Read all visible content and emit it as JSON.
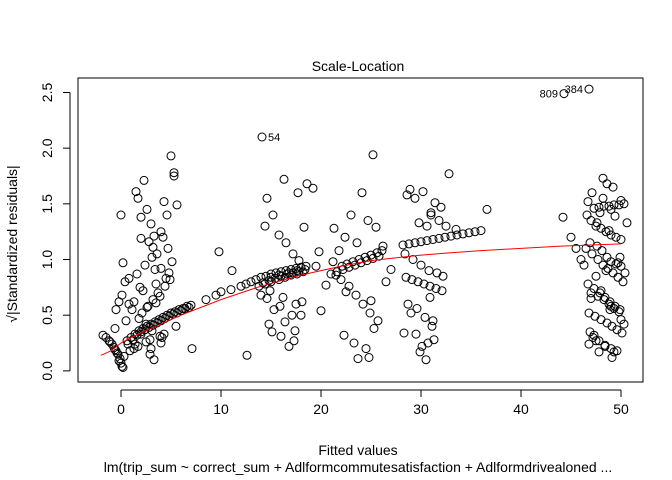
{
  "chart_data": {
    "type": "scatter",
    "title": "Scale-Location",
    "xlabel": "Fitted values",
    "ylabel": "√|Standardized residuals|",
    "subtitle": "lm(trip_sum ~ correct_sum + Adlformcommutesatisfaction + Adlformdrivealoned ...",
    "xlim": [
      -4.3,
      52.2
    ],
    "ylim": [
      -0.1,
      2.63
    ],
    "x_ticks": [
      0,
      10,
      20,
      30,
      40,
      50
    ],
    "y_ticks": [
      0.0,
      0.5,
      1.0,
      1.5,
      2.0,
      2.5
    ],
    "grid": false,
    "legend": "none",
    "point_style": "open-circle",
    "point_color": "#000000",
    "smoother_color": "#ff0000",
    "smoother": {
      "x": [
        -2.0,
        -1.0,
        0.0,
        1.0,
        2.0,
        3.0,
        4.0,
        6.0,
        8.0,
        10.0,
        12.0,
        14.0,
        16.0,
        18.0,
        20.0,
        22.0,
        25.0,
        28.0,
        30.0,
        33.0,
        36.0,
        40.0,
        44.0,
        47.0,
        50.0
      ],
      "y": [
        0.14,
        0.18,
        0.25,
        0.3,
        0.34,
        0.38,
        0.42,
        0.5,
        0.57,
        0.64,
        0.7,
        0.76,
        0.81,
        0.86,
        0.9,
        0.94,
        0.99,
        1.02,
        1.04,
        1.06,
        1.08,
        1.1,
        1.12,
        1.13,
        1.14
      ]
    },
    "labeled_points": [
      {
        "label": "384",
        "x": 46.8,
        "y": 2.53
      },
      {
        "label": "809",
        "x": 44.3,
        "y": 2.49
      },
      {
        "label": "54",
        "x": 14.1,
        "y": 2.1
      }
    ],
    "points": {
      "x": [
        -1.8,
        -1.5,
        -1.2,
        -0.9,
        -0.7,
        -0.5,
        -0.3,
        -0.1,
        0.0,
        0.1,
        0.2,
        -0.2,
        -0.6,
        -1.1,
        0.3,
        -0.4,
        -0.6,
        -0.5,
        -0.2,
        0.1,
        0.4,
        0.8,
        0.2,
        0.0,
        0.6,
        1.0,
        1.4,
        1.8,
        2.2,
        2.6,
        3.0,
        3.4,
        3.8,
        4.2,
        4.6,
        5.0,
        5.4,
        5.8,
        6.2,
        6.6,
        7.0,
        0.7,
        1.2,
        1.6,
        2.0,
        2.4,
        2.8,
        3.2,
        3.6,
        4.0,
        4.4,
        4.8,
        5.2,
        5.6,
        6.0,
        6.4,
        6.8,
        1.3,
        1.7,
        2.5,
        2.9,
        3.9,
        4.3,
        0.9,
        3.1,
        5.5,
        1.5,
        1.7,
        2.0,
        2.3,
        2.6,
        3.0,
        3.3,
        3.6,
        4.0,
        4.3,
        4.6,
        5.0,
        5.3,
        1.6,
        2.4,
        3.1,
        3.5,
        3.9,
        4.7,
        2.2,
        3.4,
        2.8,
        4.2,
        4.5,
        1.3,
        2.6,
        1.8,
        2.1,
        2.7,
        3.2,
        3.7,
        4.4,
        4.9,
        1.4,
        2.9,
        3.3,
        4.1,
        0.8,
        1.1,
        0.5,
        2.0,
        3.0,
        4.0,
        2.5,
        3.5,
        1.9,
        4.8,
        5.3,
        5.6,
        5.1,
        4.0,
        3.2,
        2.0,
        8.5,
        9.5,
        10.0,
        11.0,
        12.0,
        12.5,
        13.0,
        13.5,
        14.0,
        14.5,
        15.0,
        15.5,
        16.0,
        16.5,
        17.0,
        17.5,
        18.0,
        18.5,
        14.2,
        14.8,
        15.4,
        16.0,
        16.6,
        17.2,
        17.8,
        18.4,
        15.0,
        15.8,
        16.8,
        17.6,
        13.8,
        14.4,
        15.0,
        15.8,
        16.4,
        17.0,
        17.6,
        18.2,
        14.4,
        14.6,
        15.2,
        15.8,
        16.5,
        17.2,
        17.8,
        18.3,
        14.0,
        15.3,
        16.4,
        17.4,
        14.6,
        15.9,
        17.1,
        18.1,
        14.9,
        16.2,
        17.5,
        17.3,
        16.8,
        15.1,
        14.8,
        18.0,
        17.7,
        16.3,
        9.8,
        11.1,
        12.6,
        7.1,
        18.6,
        19.2,
        16.0,
        21.0,
        21.6,
        22.2,
        22.8,
        23.4,
        24.0,
        24.6,
        25.2,
        25.8,
        22.1,
        22.6,
        23.2,
        23.8,
        24.4,
        25.0,
        25.6,
        26.1,
        21.3,
        22.4,
        23.6,
        24.7,
        25.5,
        26.2,
        22.0,
        22.8,
        23.5,
        24.2,
        24.9,
        25.7,
        21.8,
        23.0,
        24.1,
        25.2,
        22.3,
        23.3,
        24.5,
        25.3,
        24.8,
        23.7,
        25.0,
        22.5,
        21.5,
        20.5,
        19.5,
        20.0,
        26.5,
        27.0,
        19.8,
        21.2,
        28.2,
        28.8,
        29.4,
        30.0,
        30.6,
        31.2,
        31.8,
        32.4,
        33.0,
        33.6,
        34.2,
        34.8,
        35.4,
        36.0,
        28.5,
        29.1,
        29.7,
        30.3,
        30.9,
        31.5,
        32.1,
        28.4,
        29.2,
        30.0,
        30.8,
        31.6,
        32.2,
        28.6,
        29.4,
        30.2,
        31.0,
        31.8,
        32.0,
        28.9,
        29.8,
        30.6,
        31.4,
        29.0,
        30.4,
        31.2,
        28.7,
        29.6,
        30.9,
        29.5,
        31.1,
        28.3,
        30.1,
        30.5,
        29.9,
        31.3,
        30.7,
        32.8,
        33.5,
        36.6,
        31.0,
        32.5,
        47.3,
        47.8,
        48.3,
        48.8,
        49.3,
        49.8,
        50.3,
        46.6,
        47.0,
        47.5,
        48.0,
        48.5,
        49.0,
        49.5,
        50.0,
        46.5,
        47.1,
        47.7,
        48.2,
        48.7,
        49.2,
        49.7,
        50.2,
        46.7,
        47.3,
        47.9,
        48.4,
        48.9,
        49.4,
        49.9,
        46.8,
        47.4,
        48.0,
        48.6,
        49.1,
        49.6,
        50.1,
        46.9,
        47.6,
        48.1,
        48.6,
        49.0,
        49.5,
        50.0,
        47.0,
        47.7,
        48.3,
        48.8,
        49.3,
        49.8,
        47.2,
        47.8,
        48.4,
        49.0,
        49.6,
        47.1,
        48.2,
        49.2,
        50.0,
        46.7,
        47.9,
        49.4,
        47.5,
        48.5,
        49.7,
        48.6,
        48.2,
        49.0,
        47.6,
        48.8,
        46.9,
        47.5,
        48.4,
        49.3,
        50.3,
        47.0,
        48.0,
        49.0,
        50.0,
        44.2,
        45.0,
        45.5,
        46.0,
        46.3,
        46.8,
        47.8,
        47.3,
        50.6,
        50.4,
        48.9,
        49.9,
        49.1
      ],
      "y": [
        0.32,
        0.3,
        0.27,
        0.24,
        0.21,
        0.18,
        0.15,
        0.11,
        0.07,
        0.04,
        0.03,
        0.09,
        0.19,
        0.26,
        0.13,
        0.16,
        0.38,
        0.55,
        0.62,
        0.68,
        0.8,
        0.83,
        0.97,
        1.4,
        0.27,
        0.3,
        0.33,
        0.36,
        0.38,
        0.4,
        0.42,
        0.44,
        0.46,
        0.48,
        0.5,
        0.52,
        0.53,
        0.55,
        0.56,
        0.58,
        0.59,
        0.24,
        0.28,
        0.32,
        0.35,
        0.37,
        0.39,
        0.41,
        0.43,
        0.45,
        0.47,
        0.49,
        0.51,
        0.52,
        0.54,
        0.56,
        0.57,
        0.2,
        0.22,
        0.26,
        0.28,
        0.31,
        0.33,
        0.18,
        0.36,
        0.4,
        1.61,
        1.55,
        1.38,
        1.71,
        1.45,
        1.32,
        1.21,
        1.05,
        1.25,
        1.52,
        1.4,
        1.93,
        1.78,
        0.87,
        0.95,
        1.02,
        0.78,
        0.67,
        1.1,
        0.72,
        0.91,
        1.16,
        1.2,
        0.83,
        0.62,
        0.57,
        0.47,
        0.52,
        0.58,
        0.64,
        0.7,
        0.76,
        0.82,
        0.24,
        0.15,
        0.1,
        0.3,
        0.6,
        0.55,
        0.45,
        0.33,
        0.2,
        0.25,
        0.42,
        0.61,
        0.75,
        0.88,
        1.75,
        1.49,
        0.98,
        0.92,
        1.11,
        1.19,
        0.64,
        0.68,
        0.71,
        0.73,
        0.76,
        0.78,
        0.8,
        0.82,
        0.84,
        0.85,
        0.87,
        0.88,
        0.89,
        0.9,
        0.91,
        0.92,
        0.93,
        0.94,
        0.79,
        0.81,
        0.83,
        0.85,
        0.87,
        0.88,
        0.89,
        0.91,
        0.84,
        0.86,
        0.88,
        0.9,
        0.76,
        0.78,
        0.8,
        0.82,
        0.84,
        0.86,
        0.87,
        0.89,
        1.3,
        1.55,
        1.4,
        1.22,
        1.15,
        1.05,
        0.99,
        1.29,
        0.68,
        0.55,
        0.44,
        0.36,
        0.65,
        0.58,
        0.5,
        0.62,
        0.72,
        0.66,
        0.6,
        0.27,
        0.22,
        0.35,
        0.42,
        0.5,
        1.6,
        1.72,
        1.07,
        0.9,
        0.14,
        0.2,
        1.68,
        1.64,
        0.31,
        0.87,
        0.89,
        0.91,
        0.93,
        0.95,
        0.97,
        0.99,
        1.01,
        1.03,
        0.94,
        0.96,
        0.98,
        1.0,
        1.02,
        1.04,
        1.06,
        1.08,
        1.28,
        1.2,
        1.15,
        1.35,
        1.29,
        1.12,
        0.82,
        0.76,
        0.68,
        0.6,
        0.52,
        0.45,
        1.08,
        1.4,
        1.6,
        1.94,
        0.32,
        0.25,
        0.2,
        0.38,
        0.12,
        0.11,
        0.63,
        0.71,
        0.86,
        0.77,
        0.94,
        0.54,
        0.8,
        0.91,
        1.07,
        0.98,
        1.13,
        1.14,
        1.15,
        1.16,
        1.17,
        1.18,
        1.19,
        1.2,
        1.21,
        1.22,
        1.23,
        1.24,
        1.25,
        1.26,
        0.84,
        0.82,
        0.8,
        0.78,
        0.76,
        0.74,
        0.72,
        1.05,
        1.0,
        0.95,
        0.9,
        0.88,
        0.85,
        1.58,
        1.55,
        1.61,
        1.42,
        1.35,
        1.47,
        1.63,
        1.33,
        1.3,
        1.51,
        0.52,
        0.48,
        0.45,
        0.6,
        0.56,
        0.66,
        0.33,
        0.4,
        0.34,
        0.22,
        0.1,
        0.17,
        0.28,
        0.25,
        1.77,
        1.27,
        1.45,
        1.4,
        1.3,
        1.46,
        1.47,
        1.48,
        1.48,
        1.49,
        1.49,
        1.5,
        1.4,
        1.35,
        1.3,
        1.28,
        1.25,
        1.22,
        1.2,
        1.18,
        1.1,
        1.05,
        1.0,
        0.95,
        0.92,
        0.88,
        0.84,
        0.8,
        0.78,
        0.74,
        0.7,
        0.66,
        0.62,
        0.58,
        0.55,
        0.52,
        0.49,
        0.46,
        0.43,
        0.4,
        0.37,
        0.34,
        1.15,
        1.12,
        1.08,
        1.02,
        0.98,
        0.96,
        0.94,
        0.7,
        0.67,
        0.64,
        0.6,
        0.56,
        0.53,
        0.3,
        0.27,
        0.23,
        0.2,
        0.18,
        1.6,
        1.55,
        1.65,
        1.53,
        1.52,
        1.42,
        1.39,
        0.85,
        0.9,
        0.97,
        1.68,
        1.73,
        1.45,
        1.33,
        1.26,
        0.35,
        0.27,
        0.22,
        0.17,
        0.42,
        0.65,
        0.72,
        0.58,
        0.46,
        1.38,
        1.2,
        1.1,
        1.0,
        0.95,
        0.24,
        0.17,
        0.32,
        1.33,
        0.88,
        0.55,
        1.02,
        0.12
      ]
    }
  }
}
